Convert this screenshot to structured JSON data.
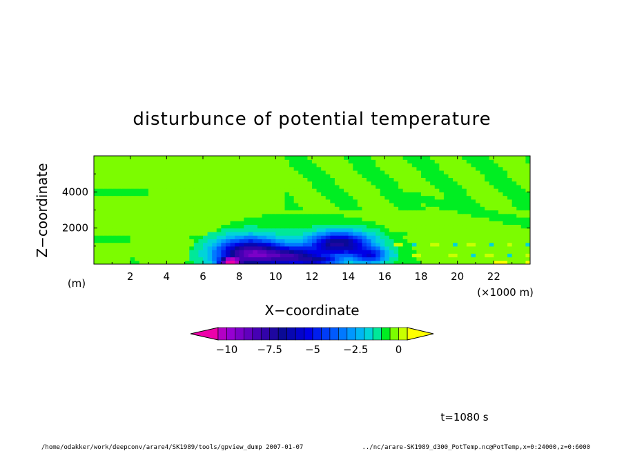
{
  "chart_data": {
    "type": "heatmap",
    "title": "disturbunce of potential temperature",
    "xlabel": "X−coordinate",
    "ylabel": "Z−coordinate",
    "x_units": "(×1000 m)",
    "y_units": "(m)",
    "xlim": [
      0,
      24
    ],
    "ylim": [
      0,
      6000
    ],
    "x_ticks": [
      2,
      4,
      6,
      8,
      10,
      12,
      14,
      16,
      18,
      20,
      22
    ],
    "x_tick_labels": [
      "2",
      "4",
      "6",
      "8",
      "10",
      "12",
      "14",
      "16",
      "18",
      "20",
      "22"
    ],
    "y_ticks": [
      2000,
      4000
    ],
    "y_tick_labels": [
      "2000",
      "4000"
    ],
    "colorbar": {
      "min": -11,
      "max": 1,
      "step": 0.5,
      "extend": "both",
      "ticks": [
        -10,
        -7.5,
        -5,
        -2.5,
        0
      ],
      "tick_labels": [
        "−10",
        "−7.5",
        "−5",
        "−2.5",
        "0"
      ]
    },
    "approx_features": [
      {
        "desc": "strong cold anomaly near surface",
        "x_range": [
          7,
          16
        ],
        "z_range": [
          0,
          1300
        ],
        "min_value": -10
      },
      {
        "desc": "weak negative shell",
        "x_range": [
          5,
          17
        ],
        "z_range": [
          0,
          3000
        ],
        "value": -0.5
      },
      {
        "desc": "near-zero background",
        "x_range": [
          0,
          24
        ],
        "z_range": [
          0,
          6000
        ],
        "value": 0
      },
      {
        "desc": "small positive patches",
        "x_range": [
          16,
          24
        ],
        "z_range": [
          0,
          2000
        ],
        "value": 0.5
      }
    ]
  },
  "annotations": {
    "time": "t=1080 s",
    "footer_left": "/home/odakker/work/deepconv/arare4/SK1989/tools/gpview_dump   2007-01-07",
    "footer_right": "../nc/arare-SK1989_d300_PotTemp.nc@PotTemp,x=0:24000,z=0:6000"
  },
  "colors": {
    "background_zero": "#7cfc00",
    "shell": "#00ee22",
    "cold_extreme": "#ee00aa",
    "warm_extreme": "#ffff00"
  }
}
